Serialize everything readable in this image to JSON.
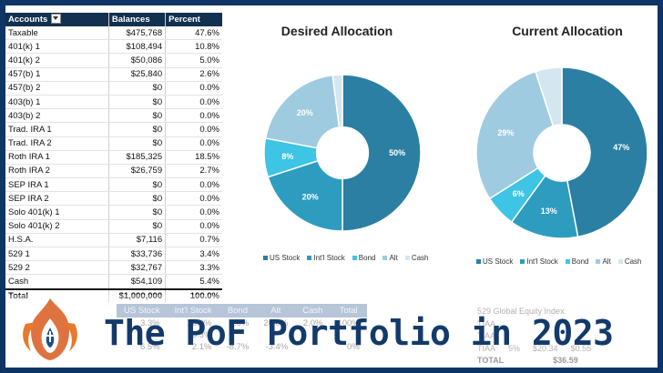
{
  "table": {
    "headers": [
      "Accounts",
      "Balances",
      "Percent"
    ],
    "rows": [
      [
        "Taxable",
        "$475,768",
        "47.6%"
      ],
      [
        "401(k) 1",
        "$108,494",
        "10.8%"
      ],
      [
        "401(k) 2",
        "$50,086",
        "5.0%"
      ],
      [
        "457(b) 1",
        "$25,840",
        "2.6%"
      ],
      [
        "457(b) 2",
        "$0",
        "0.0%"
      ],
      [
        "403(b) 1",
        "$0",
        "0.0%"
      ],
      [
        "403(b) 2",
        "$0",
        "0.0%"
      ],
      [
        "Trad. IRA 1",
        "$0",
        "0.0%"
      ],
      [
        "Trad. IRA 2",
        "$0",
        "0.0%"
      ],
      [
        "Roth IRA 1",
        "$185,325",
        "18.5%"
      ],
      [
        "Roth IRA 2",
        "$26,759",
        "2.7%"
      ],
      [
        "SEP IRA 1",
        "$0",
        "0.0%"
      ],
      [
        "SEP IRA 2",
        "$0",
        "0.0%"
      ],
      [
        "Solo 401(k) 1",
        "$0",
        "0.0%"
      ],
      [
        "Solo 401(k) 2",
        "$0",
        "0.0%"
      ],
      [
        "H.S.A.",
        "$7,116",
        "0.7%"
      ],
      [
        "529 1",
        "$33,736",
        "3.4%"
      ],
      [
        "529 2",
        "$32,767",
        "3.3%"
      ],
      [
        "Cash",
        "$54,109",
        "5.4%"
      ]
    ],
    "total": [
      "Total",
      "$1,000,000",
      "100.0%"
    ]
  },
  "legend_labels": [
    "US Stock",
    "Int'l Stock",
    "Bond",
    "Alt",
    "Cash"
  ],
  "colors": {
    "us_stock": "#2b7fa3",
    "intl_stock": "#2d9cbf",
    "bond": "#3ec4e4",
    "alt": "#9fcbe0",
    "cash": "#d4e6ef"
  },
  "chart_data": [
    {
      "type": "pie",
      "title": "Desired Allocation",
      "categories": [
        "US Stock",
        "Int'l Stock",
        "Bond",
        "Alt",
        "Cash"
      ],
      "values": [
        50,
        20,
        8,
        20,
        2
      ],
      "data_labels": [
        "50%",
        "20%",
        "8%",
        "20%",
        ""
      ]
    },
    {
      "type": "pie",
      "title": "Current Allocation",
      "categories": [
        "US Stock",
        "Int'l Stock",
        "Bond",
        "Alt",
        "Cash"
      ],
      "values": [
        47,
        13,
        6,
        29,
        5
      ],
      "data_labels": [
        "47%",
        "13%",
        "6%",
        "29%",
        ""
      ]
    }
  ],
  "bottom_table": {
    "headers": [
      "US Stock",
      "Int'l Stock",
      "Bond",
      "Alt",
      "Cash",
      "Total"
    ],
    "rows": [
      [
        "20.0%",
        "8.0%",
        "20.0%",
        "2.0%",
        "100%"
      ],
      [
        "13.3%",
        "",
        "",
        "",
        ""
      ],
      [
        "6.5%",
        "2.1%",
        "-8.7%",
        "-3.4%",
        "0%"
      ]
    ],
    "first_col": [
      "3.3%"
    ]
  },
  "fund": {
    "title": "529 Global Equity Index",
    "rows": [
      [
        "TIAA",
        "",
        ""
      ],
      [
        "TIAA",
        "",
        ""
      ],
      [
        "TIAA",
        "5%",
        "$20.34",
        "$0.55"
      ]
    ],
    "total_label": "TOTAL",
    "total_value": "$36.59"
  },
  "headline": "The PoF Portfolio in 2023"
}
